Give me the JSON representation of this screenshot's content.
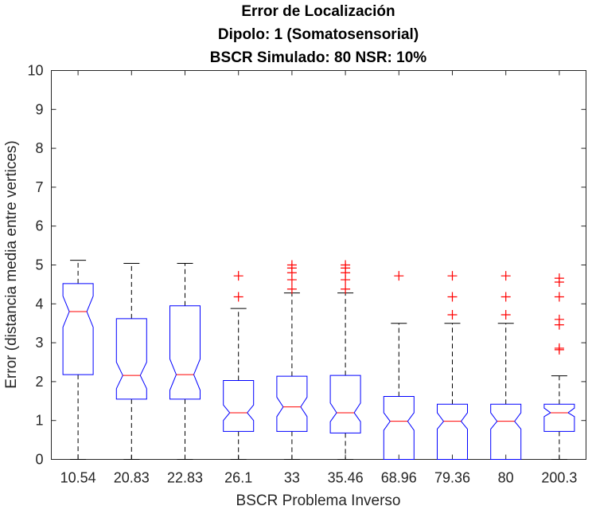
{
  "chart_data": {
    "type": "box",
    "title": [
      "Error de Localización",
      "Dipolo: 1 (Somatosensorial)",
      "BSCR Simulado: 80 NSR: 10%"
    ],
    "xlabel": "BSCR Problema Inverso",
    "ylabel": "Error (distancia media entre vertices)",
    "ylim": [
      0,
      10
    ],
    "yticks": [
      0,
      1,
      2,
      3,
      4,
      5,
      6,
      7,
      8,
      9,
      10
    ],
    "categories": [
      "10.54",
      "20.83",
      "22.83",
      "26.1",
      "33",
      "35.46",
      "68.96",
      "79.36",
      "80",
      "200.3"
    ],
    "notched": true,
    "colors": {
      "box": "#0000ff",
      "median": "#ff0000",
      "whisker": "#000000",
      "outlier": "#ff0000",
      "axis": "#262626"
    },
    "boxes": [
      {
        "q1": 2.18,
        "median": 3.8,
        "q3": 4.52,
        "notch_low": 3.4,
        "notch_high": 4.2,
        "whisker_low": 0,
        "whisker_high": 5.12,
        "outliers": []
      },
      {
        "q1": 1.55,
        "median": 2.16,
        "q3": 3.62,
        "notch_low": 1.82,
        "notch_high": 2.5,
        "whisker_low": 0,
        "whisker_high": 5.04,
        "outliers": []
      },
      {
        "q1": 1.55,
        "median": 2.18,
        "q3": 3.95,
        "notch_low": 1.78,
        "notch_high": 2.58,
        "whisker_low": 0,
        "whisker_high": 5.04,
        "outliers": []
      },
      {
        "q1": 0.72,
        "median": 1.2,
        "q3": 2.03,
        "notch_low": 1.0,
        "notch_high": 1.4,
        "whisker_low": 0,
        "whisker_high": 3.88,
        "outliers": [
          4.18,
          4.72
        ]
      },
      {
        "q1": 0.72,
        "median": 1.35,
        "q3": 2.14,
        "notch_low": 1.1,
        "notch_high": 1.6,
        "whisker_low": 0,
        "whisker_high": 4.28,
        "outliers": [
          4.38,
          4.62,
          4.8,
          4.92,
          5.0
        ]
      },
      {
        "q1": 0.68,
        "median": 1.2,
        "q3": 2.16,
        "notch_low": 0.97,
        "notch_high": 1.45,
        "whisker_low": 0,
        "whisker_high": 4.28,
        "outliers": [
          4.38,
          4.62,
          4.8,
          4.92,
          5.0
        ]
      },
      {
        "q1": 0,
        "median": 0.98,
        "q3": 1.62,
        "notch_low": 0.75,
        "notch_high": 1.2,
        "whisker_low": 0,
        "whisker_high": 3.5,
        "outliers": [
          4.72
        ]
      },
      {
        "q1": 0,
        "median": 0.98,
        "q3": 1.42,
        "notch_low": 0.78,
        "notch_high": 1.2,
        "whisker_low": 0,
        "whisker_high": 3.5,
        "outliers": [
          3.72,
          4.18,
          4.72
        ]
      },
      {
        "q1": 0,
        "median": 0.98,
        "q3": 1.42,
        "notch_low": 0.78,
        "notch_high": 1.2,
        "whisker_low": 0,
        "whisker_high": 3.5,
        "outliers": [
          3.72,
          4.18,
          4.72
        ]
      },
      {
        "q1": 0.72,
        "median": 1.2,
        "q3": 1.42,
        "notch_low": 1.1,
        "notch_high": 1.32,
        "whisker_low": 0,
        "whisker_high": 2.15,
        "outliers": [
          2.82,
          2.86,
          3.46,
          3.6,
          4.18,
          4.56,
          4.66
        ]
      }
    ]
  }
}
